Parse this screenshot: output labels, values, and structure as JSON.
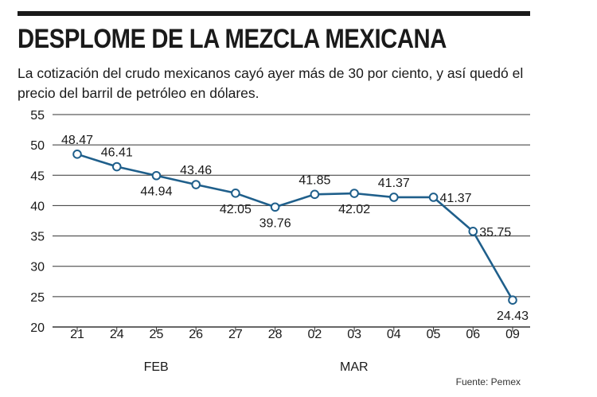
{
  "header": {
    "title": "DESPLOME DE LA MEZCLA MEXICANA",
    "subtitle": "La cotización del crudo mexicanos cayó ayer más de 30 por ciento, y así quedó el precio del barril de petróleo en dólares."
  },
  "footer": {
    "source": "Fuente: Pemex"
  },
  "colors": {
    "line": "#1f5f8b",
    "marker_fill": "#ffffff",
    "grid": "#333333",
    "text": "#1a1a1a"
  },
  "chart_data": {
    "type": "line",
    "title": "DESPLOME DE LA MEZCLA MEXICANA",
    "xlabel": "",
    "ylabel": "",
    "categories": [
      "21",
      "24",
      "25",
      "26",
      "27",
      "28",
      "02",
      "03",
      "04",
      "05",
      "06",
      "09"
    ],
    "month_labels": [
      {
        "label": "FEB",
        "category": "26"
      },
      {
        "label": "MAR",
        "category": "04"
      }
    ],
    "series": [
      {
        "values": [
          48.47,
          46.41,
          44.94,
          43.46,
          42.05,
          39.76,
          41.85,
          42.02,
          41.37,
          41.37,
          35.75,
          24.43
        ]
      }
    ],
    "data_labels": [
      "48.47",
      "46.41",
      "44.94",
      "43.46",
      "42.05",
      "39.76",
      "41.85",
      "42.02",
      "41.37",
      "41.37",
      "35.75",
      "24.43"
    ],
    "label_positions": [
      "above",
      "above",
      "below",
      "above",
      "below",
      "below",
      "above",
      "below",
      "above",
      "right",
      "right",
      "below"
    ],
    "ylim": [
      20,
      55
    ],
    "yticks": [
      20,
      25,
      30,
      35,
      40,
      45,
      50,
      55
    ],
    "grid": true,
    "legend": "none"
  }
}
